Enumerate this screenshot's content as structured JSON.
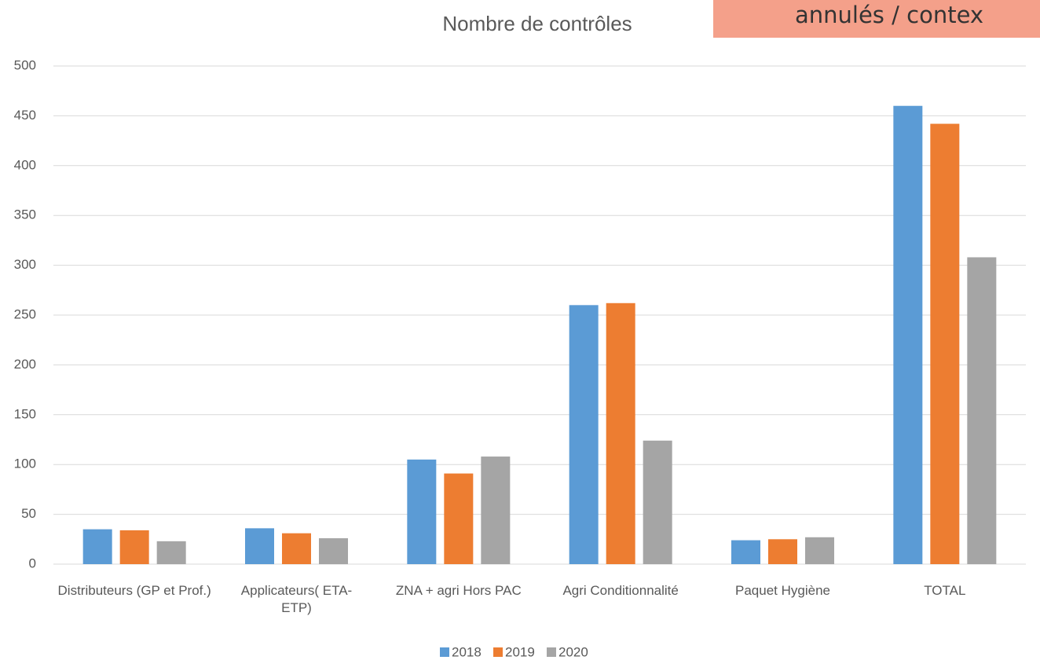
{
  "chart_data": {
    "type": "bar",
    "title": "Nombre de contrôles",
    "overlay_text": "annulés / contex",
    "categories": [
      "Distributeurs (GP et Prof.)",
      "Applicateurs( ETA-ETP)",
      "ZNA + agri Hors PAC",
      "Agri Conditionnalité",
      "Paquet Hygiène",
      "TOTAL"
    ],
    "series": [
      {
        "name": "2018",
        "color": "#5b9bd5",
        "values": [
          35,
          36,
          105,
          260,
          24,
          460
        ]
      },
      {
        "name": "2019",
        "color": "#ed7d31",
        "values": [
          34,
          31,
          91,
          262,
          25,
          442
        ]
      },
      {
        "name": "2020",
        "color": "#a5a5a5",
        "values": [
          23,
          26,
          108,
          124,
          27,
          308
        ]
      }
    ],
    "ylim": [
      0,
      500
    ],
    "yticks": [
      0,
      50,
      100,
      150,
      200,
      250,
      300,
      350,
      400,
      450,
      500
    ],
    "grid": true,
    "legend": "bottom"
  }
}
